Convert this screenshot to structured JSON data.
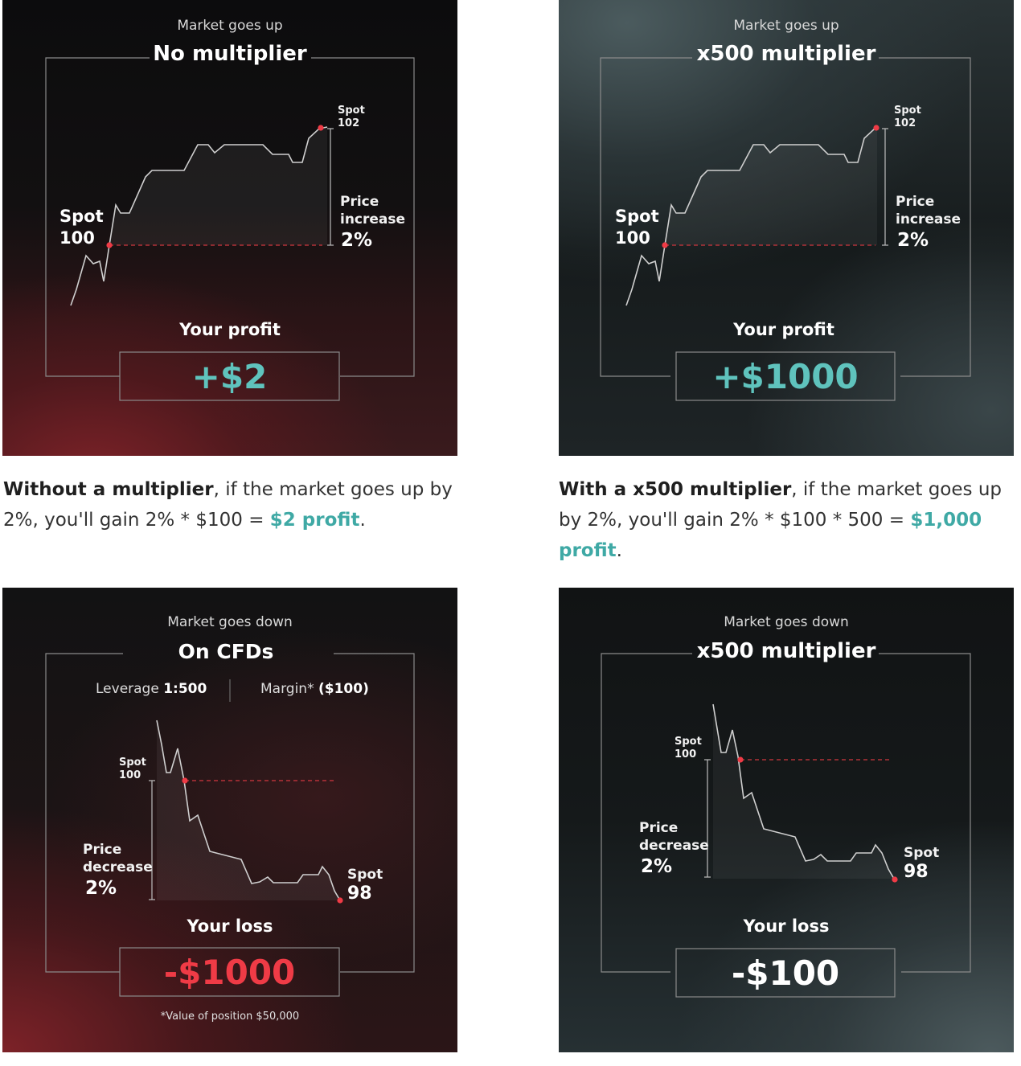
{
  "panels": [
    {
      "subtitle": "Market goes up",
      "title": "No multiplier",
      "spot_end_label": "Spot",
      "spot_end_value": "102",
      "spot_start_label": "Spot",
      "spot_start_value": "100",
      "change_line1": "Price",
      "change_line2": "increase",
      "change_pct": "2%",
      "result_label": "Your profit",
      "result_value": "+$2"
    },
    {
      "subtitle": "Market goes up",
      "title": "x500 multiplier",
      "spot_end_label": "Spot",
      "spot_end_value": "102",
      "spot_start_label": "Spot",
      "spot_start_value": "100",
      "change_line1": "Price",
      "change_line2": "increase",
      "change_pct": "2%",
      "result_label": "Your profit",
      "result_value": "+$1000"
    },
    {
      "subtitle": "Market goes down",
      "title": "On CFDs",
      "leverage_label": "Leverage",
      "leverage_value": "1:500",
      "margin_label": "Margin*",
      "margin_value": "($100)",
      "spot_start_label": "Spot",
      "spot_start_value": "100",
      "change_line1": "Price",
      "change_line2": "decrease",
      "change_pct": "2%",
      "spot_end_label": "Spot",
      "spot_end_value": "98",
      "result_label": "Your loss",
      "result_value": "-$1000",
      "footnote": "*Value of position $50,000"
    },
    {
      "subtitle": "Market goes down",
      "title": "x500 multiplier",
      "spot_start_label": "Spot",
      "spot_start_value": "100",
      "change_line1": "Price",
      "change_line2": "decrease",
      "change_pct": "2%",
      "spot_end_label": "Spot",
      "spot_end_value": "98",
      "result_label": "Your loss",
      "result_value": "-$100"
    }
  ],
  "captions": [
    {
      "bold": "Without a multiplier",
      "text1": ", if the market goes up by 2%, you'll gain 2% * $100 = ",
      "highlight": "$2 profit",
      "text2": "."
    },
    {
      "bold": "With a x500 multiplier",
      "text1": ", if the market goes up by 2%, you'll gain 2% * $100 * 500 = ",
      "highlight": "$1,000 profit",
      "text2": "."
    }
  ],
  "colors": {
    "profit": "#5fc3bd",
    "loss": "#ef3b46",
    "marker": "#ef3b46",
    "caption_highlight": "#3fa9a5"
  }
}
